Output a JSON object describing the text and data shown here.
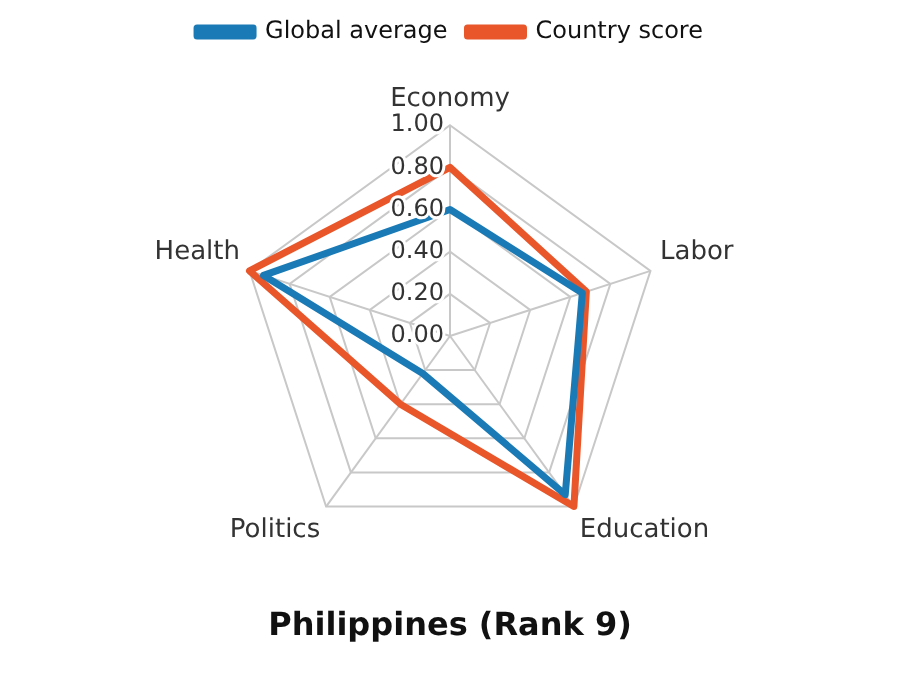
{
  "chart_data": {
    "type": "radar",
    "title": "Philippines (Rank 9)",
    "categories": [
      "Economy",
      "Labor",
      "Education",
      "Politics",
      "Health"
    ],
    "series": [
      {
        "name": "Global average",
        "color": "#1a7ab5",
        "values": [
          0.6,
          0.66,
          0.93,
          0.22,
          0.93
        ]
      },
      {
        "name": "Country score",
        "color": "#e8562a",
        "values": [
          0.8,
          0.68,
          1.0,
          0.4,
          1.0
        ]
      }
    ],
    "ylim": [
      0,
      1
    ],
    "yticks": [
      {
        "value": 0,
        "label": "0.00"
      },
      {
        "value": 0.2,
        "label": "0.20"
      },
      {
        "value": 0.4,
        "label": "0.40"
      },
      {
        "value": 0.6,
        "label": "0.60"
      },
      {
        "value": 0.8,
        "label": "0.80"
      },
      {
        "value": 1,
        "label": "1.00"
      }
    ],
    "grid": true,
    "legend": "top",
    "marker": "none"
  }
}
